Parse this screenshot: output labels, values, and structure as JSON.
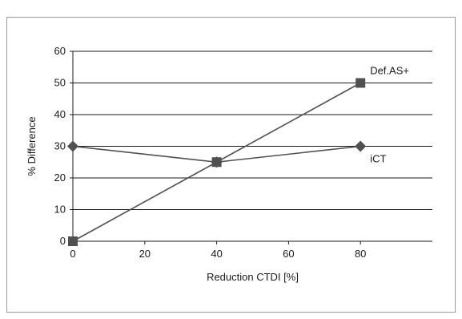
{
  "chart_data": {
    "type": "line",
    "title": "",
    "xlabel": "Reduction CTDI [%]",
    "ylabel": "% Difference",
    "xlim": [
      0,
      100
    ],
    "ylim": [
      0,
      60
    ],
    "x_ticks": [
      "0",
      "20",
      "40",
      "60",
      "80"
    ],
    "y_ticks": [
      "0",
      "10",
      "20",
      "30",
      "40",
      "50",
      "60"
    ],
    "grid": "horizontal",
    "legend": "none (series labeled inline at right end of lines)",
    "series": [
      {
        "name": "Def.AS+",
        "marker": "square",
        "color": "#505050",
        "x": [
          0,
          40,
          80
        ],
        "y": [
          0,
          25,
          50
        ]
      },
      {
        "name": "iCT",
        "marker": "diamond",
        "color": "#505050",
        "x": [
          0,
          40,
          80
        ],
        "y": [
          30,
          25,
          30
        ]
      }
    ]
  }
}
